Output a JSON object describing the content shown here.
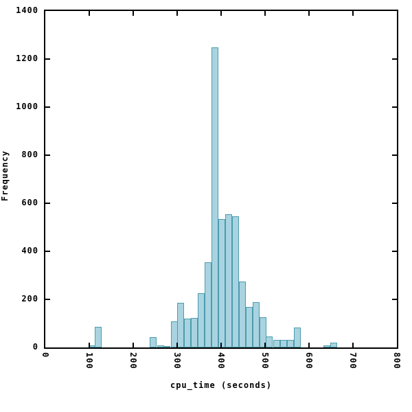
{
  "chart_data": {
    "type": "bar",
    "subtype": "histogram",
    "title": "",
    "xlabel": "cpu_time (seconds)",
    "ylabel": "Frequency",
    "xlim": [
      0,
      800
    ],
    "ylim": [
      0,
      1400
    ],
    "xticks": [
      0,
      100,
      200,
      300,
      400,
      500,
      600,
      700,
      800
    ],
    "yticks": [
      0,
      200,
      400,
      600,
      800,
      1000,
      1200,
      1400
    ],
    "grid": "off",
    "legend": "none",
    "bin_width": 15.6,
    "bins": [
      {
        "x": 106,
        "count": 8
      },
      {
        "x": 121,
        "count": 85
      },
      {
        "x": 246,
        "count": 42
      },
      {
        "x": 262,
        "count": 10
      },
      {
        "x": 277,
        "count": 3
      },
      {
        "x": 293,
        "count": 110
      },
      {
        "x": 308,
        "count": 185
      },
      {
        "x": 324,
        "count": 120
      },
      {
        "x": 339,
        "count": 122
      },
      {
        "x": 355,
        "count": 225
      },
      {
        "x": 370,
        "count": 355
      },
      {
        "x": 386,
        "count": 1250
      },
      {
        "x": 402,
        "count": 535
      },
      {
        "x": 417,
        "count": 555
      },
      {
        "x": 433,
        "count": 545
      },
      {
        "x": 448,
        "count": 275
      },
      {
        "x": 464,
        "count": 170
      },
      {
        "x": 479,
        "count": 190
      },
      {
        "x": 495,
        "count": 125
      },
      {
        "x": 510,
        "count": 45
      },
      {
        "x": 526,
        "count": 32
      },
      {
        "x": 542,
        "count": 32
      },
      {
        "x": 557,
        "count": 32
      },
      {
        "x": 573,
        "count": 83
      },
      {
        "x": 640,
        "count": 10
      },
      {
        "x": 656,
        "count": 20
      }
    ],
    "colors": {
      "bar_fill": "#a9d3e0",
      "bar_border": "#4b9cad",
      "frame": "#000000",
      "background": "#ffffff",
      "text": "#000000"
    }
  }
}
